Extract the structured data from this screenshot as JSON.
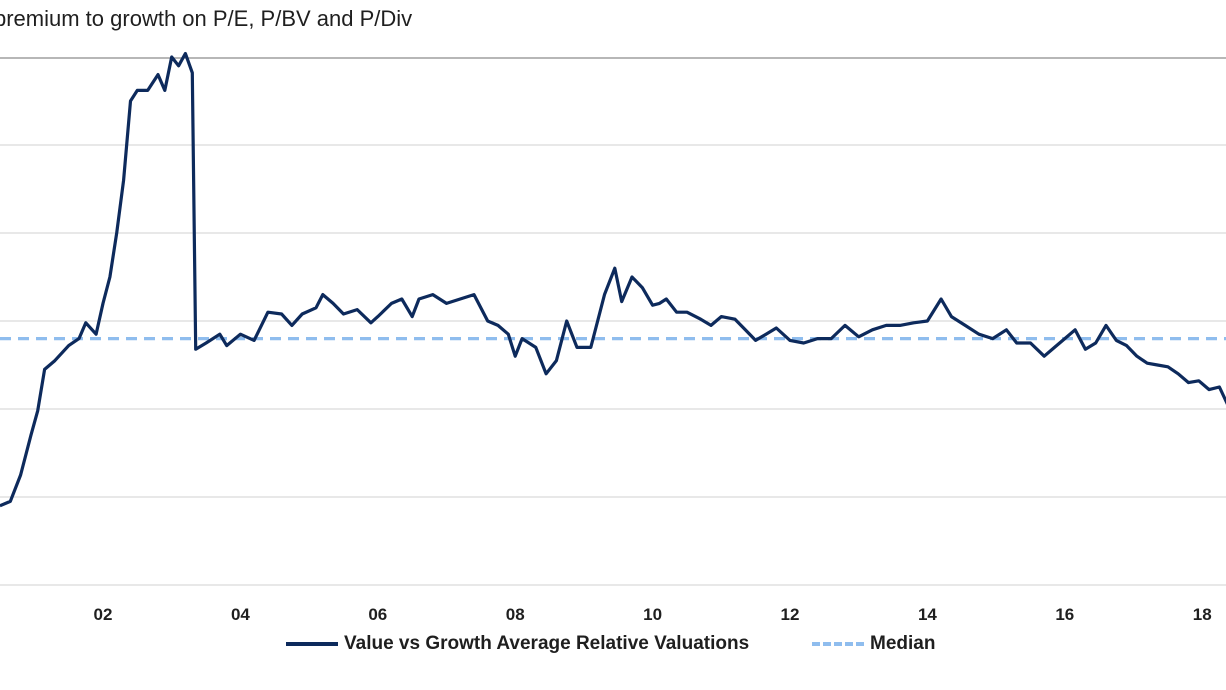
{
  "chart_data": {
    "type": "line",
    "title": "premium to growth on P/E, P/BV and P/Div",
    "xlabel": "",
    "ylabel": "",
    "x_ticks": [
      "02",
      "04",
      "06",
      "08",
      "10",
      "12",
      "14",
      "16",
      "18"
    ],
    "grid": "horizontal",
    "legend_position": "bottom-center",
    "colors": {
      "series": "#0d2a5c",
      "median": "#8fbdee"
    },
    "series": [
      {
        "name": "Value vs Growth Average Relative Valuations",
        "style": "solid",
        "points": [
          [
            2000.5,
            -1.1
          ],
          [
            2000.65,
            -1.05
          ],
          [
            2000.8,
            -0.75
          ],
          [
            2000.95,
            -0.3
          ],
          [
            2001.05,
            -0.02
          ],
          [
            2001.15,
            0.45
          ],
          [
            2001.3,
            0.55
          ],
          [
            2001.5,
            0.72
          ],
          [
            2001.65,
            0.8
          ],
          [
            2001.75,
            0.98
          ],
          [
            2001.9,
            0.85
          ],
          [
            2002.0,
            1.2
          ],
          [
            2002.1,
            1.5
          ],
          [
            2002.2,
            2.0
          ],
          [
            2002.3,
            2.6
          ],
          [
            2002.4,
            3.5
          ],
          [
            2002.5,
            3.62
          ],
          [
            2002.65,
            3.62
          ],
          [
            2002.8,
            3.8
          ],
          [
            2002.9,
            3.62
          ],
          [
            2003.0,
            4.0
          ],
          [
            2003.1,
            3.9
          ],
          [
            2003.2,
            4.04
          ],
          [
            2003.3,
            3.82
          ],
          [
            2003.35,
            0.68
          ],
          [
            2003.5,
            0.75
          ],
          [
            2003.7,
            0.85
          ],
          [
            2003.8,
            0.72
          ],
          [
            2004.0,
            0.85
          ],
          [
            2004.2,
            0.78
          ],
          [
            2004.4,
            1.1
          ],
          [
            2004.6,
            1.08
          ],
          [
            2004.75,
            0.95
          ],
          [
            2004.9,
            1.08
          ],
          [
            2005.1,
            1.15
          ],
          [
            2005.2,
            1.3
          ],
          [
            2005.35,
            1.2
          ],
          [
            2005.5,
            1.08
          ],
          [
            2005.7,
            1.13
          ],
          [
            2005.9,
            0.98
          ],
          [
            2006.0,
            1.05
          ],
          [
            2006.2,
            1.2
          ],
          [
            2006.35,
            1.25
          ],
          [
            2006.5,
            1.05
          ],
          [
            2006.6,
            1.25
          ],
          [
            2006.8,
            1.3
          ],
          [
            2007.0,
            1.2
          ],
          [
            2007.2,
            1.25
          ],
          [
            2007.4,
            1.3
          ],
          [
            2007.6,
            1.0
          ],
          [
            2007.75,
            0.95
          ],
          [
            2007.9,
            0.85
          ],
          [
            2008.0,
            0.6
          ],
          [
            2008.1,
            0.8
          ],
          [
            2008.3,
            0.7
          ],
          [
            2008.45,
            0.4
          ],
          [
            2008.6,
            0.55
          ],
          [
            2008.75,
            1.0
          ],
          [
            2008.9,
            0.7
          ],
          [
            2009.1,
            0.7
          ],
          [
            2009.3,
            1.3
          ],
          [
            2009.45,
            1.6
          ],
          [
            2009.55,
            1.22
          ],
          [
            2009.7,
            1.5
          ],
          [
            2009.85,
            1.38
          ],
          [
            2010.0,
            1.18
          ],
          [
            2010.1,
            1.2
          ],
          [
            2010.2,
            1.25
          ],
          [
            2010.35,
            1.1
          ],
          [
            2010.5,
            1.1
          ],
          [
            2010.7,
            1.02
          ],
          [
            2010.85,
            0.95
          ],
          [
            2011.0,
            1.05
          ],
          [
            2011.2,
            1.02
          ],
          [
            2011.35,
            0.9
          ],
          [
            2011.5,
            0.78
          ],
          [
            2011.65,
            0.85
          ],
          [
            2011.8,
            0.92
          ],
          [
            2012.0,
            0.78
          ],
          [
            2012.2,
            0.75
          ],
          [
            2012.4,
            0.8
          ],
          [
            2012.6,
            0.8
          ],
          [
            2012.8,
            0.95
          ],
          [
            2013.0,
            0.82
          ],
          [
            2013.2,
            0.9
          ],
          [
            2013.4,
            0.95
          ],
          [
            2013.6,
            0.95
          ],
          [
            2013.8,
            0.98
          ],
          [
            2014.0,
            1.0
          ],
          [
            2014.2,
            1.25
          ],
          [
            2014.35,
            1.05
          ],
          [
            2014.55,
            0.95
          ],
          [
            2014.75,
            0.85
          ],
          [
            2014.95,
            0.8
          ],
          [
            2015.15,
            0.9
          ],
          [
            2015.3,
            0.75
          ],
          [
            2015.5,
            0.75
          ],
          [
            2015.7,
            0.6
          ],
          [
            2015.85,
            0.7
          ],
          [
            2016.0,
            0.8
          ],
          [
            2016.15,
            0.9
          ],
          [
            2016.3,
            0.68
          ],
          [
            2016.45,
            0.75
          ],
          [
            2016.6,
            0.95
          ],
          [
            2016.75,
            0.78
          ],
          [
            2016.9,
            0.72
          ],
          [
            2017.05,
            0.6
          ],
          [
            2017.2,
            0.52
          ],
          [
            2017.35,
            0.5
          ],
          [
            2017.5,
            0.48
          ],
          [
            2017.65,
            0.4
          ],
          [
            2017.8,
            0.3
          ],
          [
            2017.95,
            0.32
          ],
          [
            2018.1,
            0.22
          ],
          [
            2018.25,
            0.25
          ],
          [
            2018.4,
            0.0
          ]
        ]
      },
      {
        "name": "Median",
        "style": "dashed",
        "constant": 0.8
      }
    ]
  }
}
